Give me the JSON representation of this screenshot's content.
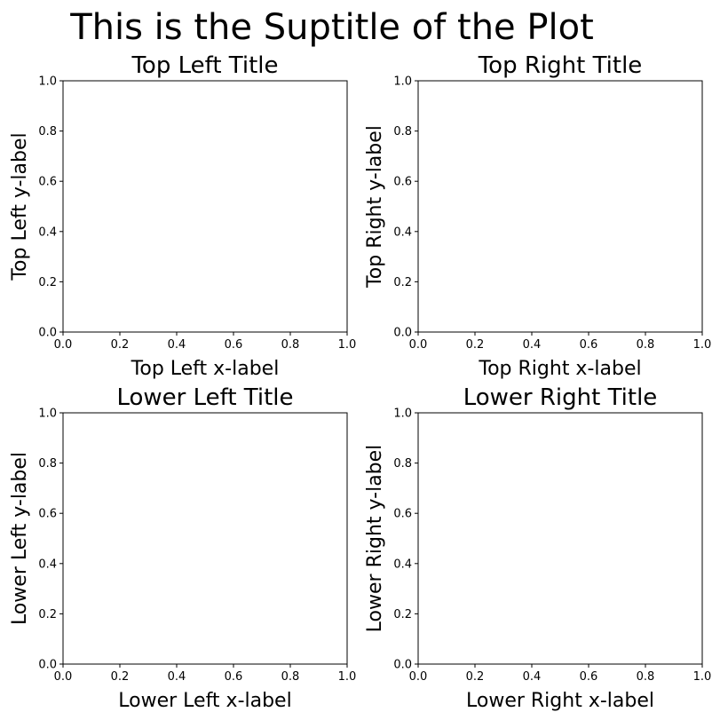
{
  "figure": {
    "suptitle": "This is the Suptitle of the Plot"
  },
  "chart_data": [
    {
      "type": "line",
      "title": "Top Left Title",
      "xlabel": "Top Left x-label",
      "ylabel": "Top Left y-label",
      "xlim": [
        0,
        1
      ],
      "ylim": [
        0,
        1
      ],
      "xticks": [
        "0.0",
        "0.2",
        "0.4",
        "0.6",
        "0.8",
        "1.0"
      ],
      "yticks": [
        "0.0",
        "0.2",
        "0.4",
        "0.6",
        "0.8",
        "1.0"
      ],
      "series": [],
      "grid": false
    },
    {
      "type": "line",
      "title": "Top Right Title",
      "xlabel": "Top Right x-label",
      "ylabel": "Top Right y-label",
      "xlim": [
        0,
        1
      ],
      "ylim": [
        0,
        1
      ],
      "xticks": [
        "0.0",
        "0.2",
        "0.4",
        "0.6",
        "0.8",
        "1.0"
      ],
      "yticks": [
        "0.0",
        "0.2",
        "0.4",
        "0.6",
        "0.8",
        "1.0"
      ],
      "series": [],
      "grid": false
    },
    {
      "type": "line",
      "title": "Lower Left Title",
      "xlabel": "Lower Left x-label",
      "ylabel": "Lower Left y-label",
      "xlim": [
        0,
        1
      ],
      "ylim": [
        0,
        1
      ],
      "xticks": [
        "0.0",
        "0.2",
        "0.4",
        "0.6",
        "0.8",
        "1.0"
      ],
      "yticks": [
        "0.0",
        "0.2",
        "0.4",
        "0.6",
        "0.8",
        "1.0"
      ],
      "series": [],
      "grid": false
    },
    {
      "type": "line",
      "title": "Lower Right Title",
      "xlabel": "Lower Right x-label",
      "ylabel": "Lower Right y-label",
      "xlim": [
        0,
        1
      ],
      "ylim": [
        0,
        1
      ],
      "xticks": [
        "0.0",
        "0.2",
        "0.4",
        "0.6",
        "0.8",
        "1.0"
      ],
      "yticks": [
        "0.0",
        "0.2",
        "0.4",
        "0.6",
        "0.8",
        "1.0"
      ],
      "series": [],
      "grid": false
    }
  ]
}
